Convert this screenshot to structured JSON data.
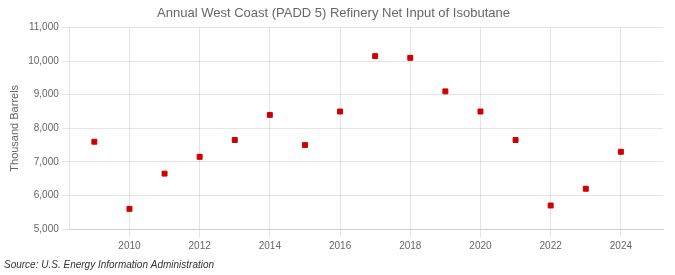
{
  "chart_data": {
    "type": "scatter",
    "title": "Annual West Coast (PADD 5) Refinery Net Input of Isobutane",
    "ylabel": "Thousand Barrels",
    "source": "Source: U.S. Energy Information Administration",
    "x": [
      2009,
      2010,
      2011,
      2012,
      2013,
      2014,
      2015,
      2016,
      2017,
      2018,
      2019,
      2020,
      2021,
      2022,
      2023,
      2024
    ],
    "values": [
      7600,
      5600,
      6650,
      7150,
      7650,
      8400,
      7500,
      8500,
      10150,
      10100,
      9100,
      8500,
      7650,
      5700,
      6200,
      7300
    ],
    "color": "#cc0000",
    "marker": "square",
    "xlim": [
      2008.3,
      2025.2
    ],
    "xticks": [
      2010,
      2012,
      2014,
      2016,
      2018,
      2020,
      2022,
      2024
    ],
    "ylim": [
      5000,
      11000
    ],
    "yticks": [
      {
        "value": 5000,
        "label": "5,000"
      },
      {
        "value": 6000,
        "label": "6,000"
      },
      {
        "value": 7000,
        "label": "7,000"
      },
      {
        "value": 8000,
        "label": "8,000"
      },
      {
        "value": 9000,
        "label": "9,000"
      },
      {
        "value": 10000,
        "label": "10,000"
      },
      {
        "value": 11000,
        "label": "11,000"
      }
    ],
    "grid": true
  }
}
